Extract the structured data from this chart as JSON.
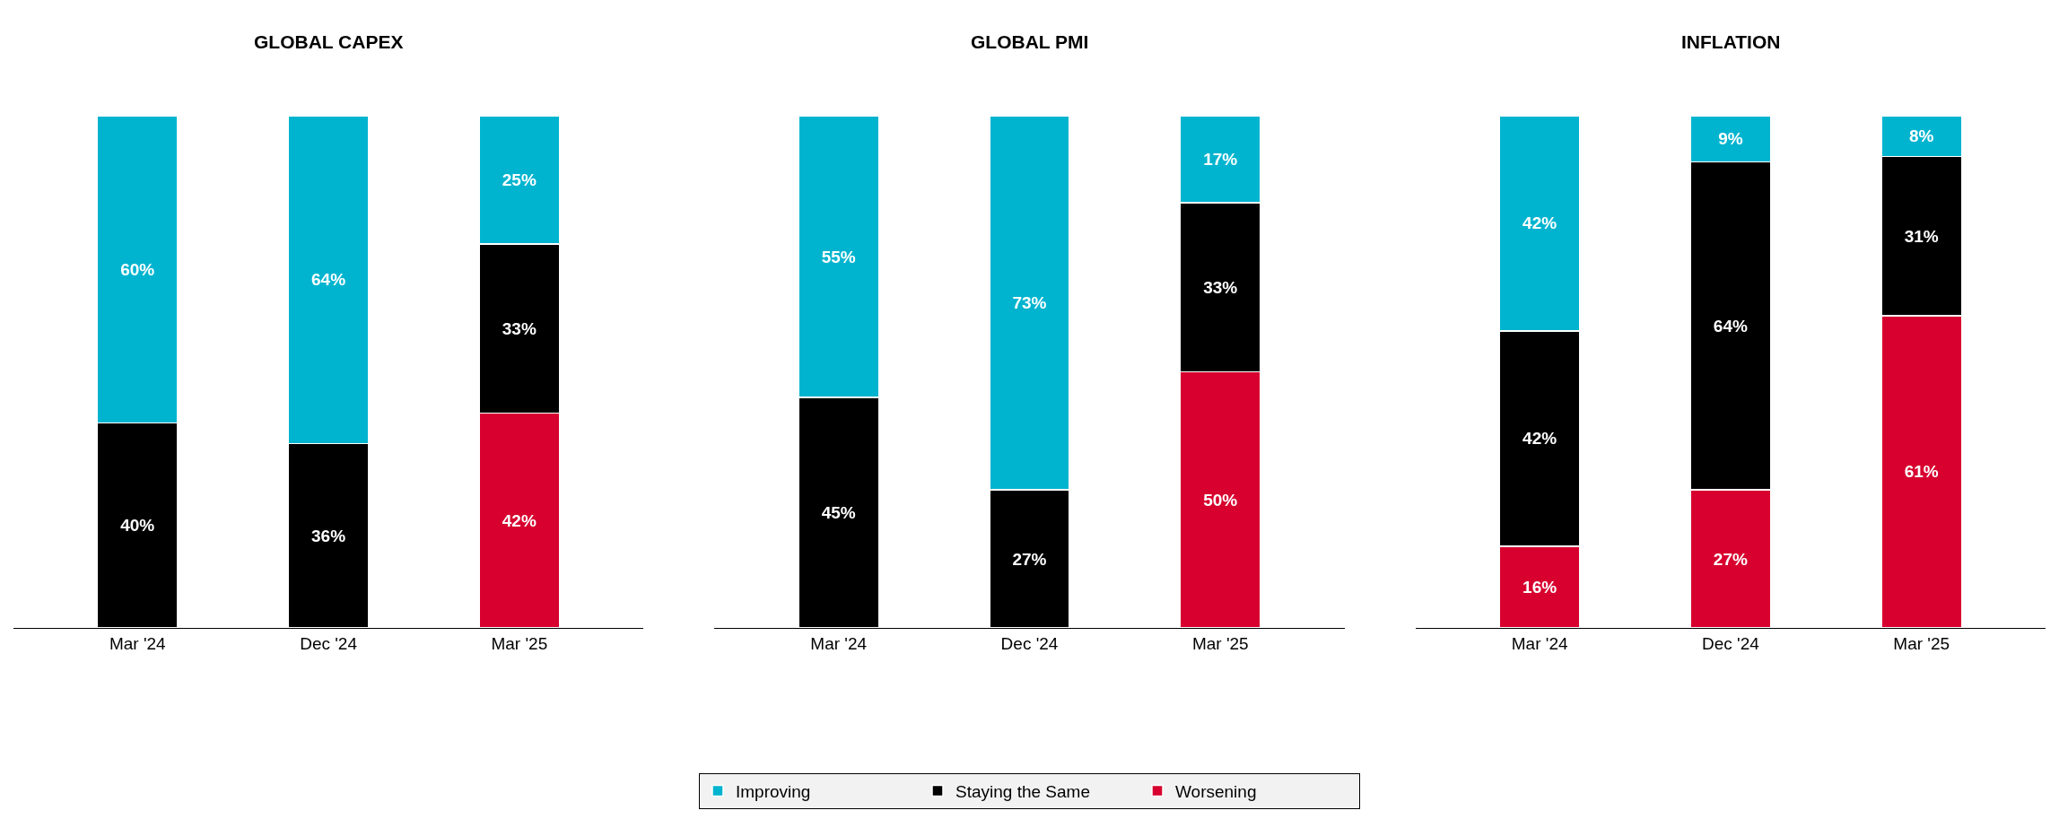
{
  "chart_data": [
    {
      "type": "bar",
      "title": "GLOBAL CAPEX",
      "categories": [
        "Mar '24",
        "Dec '24",
        "Mar '25"
      ],
      "stacked": true,
      "legend": "bottom",
      "series": [
        {
          "name": "Worsening",
          "color": "#d7002e",
          "values": [
            null,
            null,
            42
          ],
          "value_labels": [
            null,
            null,
            "42%"
          ]
        },
        {
          "name": "Staying the Same",
          "color": "#000000",
          "values": [
            40,
            36,
            33
          ],
          "value_labels": [
            "40%",
            "36%",
            "33%"
          ]
        },
        {
          "name": "Improving",
          "color": "#00b4cf",
          "values": [
            60,
            64,
            25
          ],
          "value_labels": [
            "60%",
            "64%",
            "25%"
          ]
        }
      ]
    },
    {
      "type": "bar",
      "title": "GLOBAL PMI",
      "categories": [
        "Mar '24",
        "Dec '24",
        "Mar '25"
      ],
      "stacked": true,
      "legend": "bottom",
      "series": [
        {
          "name": "Worsening",
          "color": "#d7002e",
          "values": [
            null,
            null,
            50
          ],
          "value_labels": [
            null,
            null,
            "50%"
          ]
        },
        {
          "name": "Staying the Same",
          "color": "#000000",
          "values": [
            45,
            27,
            33
          ],
          "value_labels": [
            "45%",
            "27%",
            "33%"
          ]
        },
        {
          "name": "Improving",
          "color": "#00b4cf",
          "values": [
            55,
            73,
            17
          ],
          "value_labels": [
            "55%",
            "73%",
            "17%"
          ]
        }
      ]
    },
    {
      "type": "bar",
      "title": "INFLATION",
      "categories": [
        "Mar '24",
        "Dec '24",
        "Mar '25"
      ],
      "stacked": true,
      "legend": "bottom",
      "series": [
        {
          "name": "Worsening",
          "color": "#d7002e",
          "values": [
            16,
            27,
            61
          ],
          "value_labels": [
            "16%",
            "27%",
            "61%"
          ]
        },
        {
          "name": "Staying the Same",
          "color": "#000000",
          "values": [
            42,
            64,
            31
          ],
          "value_labels": [
            "42%",
            "64%",
            "31%"
          ]
        },
        {
          "name": "Improving",
          "color": "#00b4cf",
          "values": [
            42,
            9,
            8
          ],
          "value_labels": [
            "42%",
            "9%",
            "8%"
          ]
        }
      ]
    }
  ]
}
